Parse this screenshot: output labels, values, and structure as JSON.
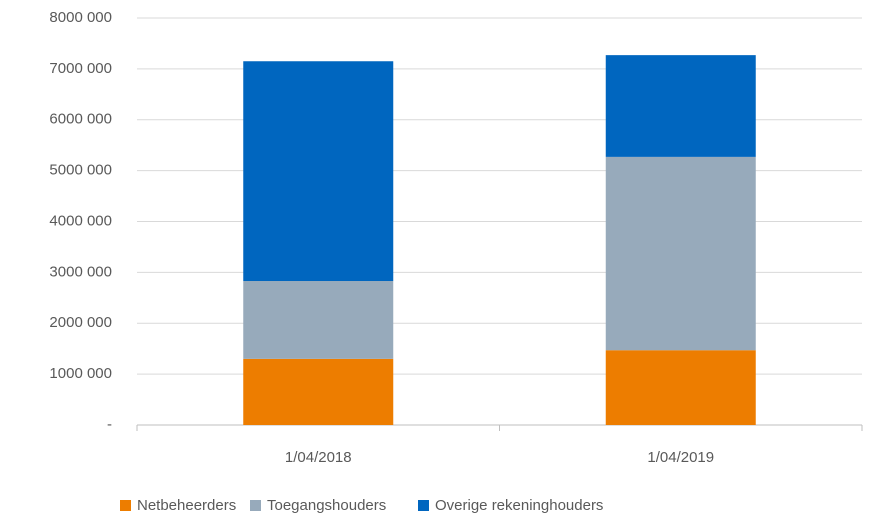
{
  "chart_data": {
    "type": "stacked_bar",
    "categories": [
      "1/04/2018",
      "1/04/2019"
    ],
    "series": [
      {
        "name": "Netbeheerders",
        "color": "#ed7d00",
        "values": [
          1300000,
          1470000
        ]
      },
      {
        "name": "Toegangshouders",
        "color": "#97aabb",
        "values": [
          1530000,
          3800000
        ]
      },
      {
        "name": "Overige rekeninghouders",
        "color": "#0066bf",
        "values": [
          4320000,
          2000000
        ]
      }
    ],
    "ylim": [
      0,
      8000000
    ],
    "yticks": [
      {
        "value": 0,
        "label": "-"
      },
      {
        "value": 1000000,
        "label": "1000 000"
      },
      {
        "value": 2000000,
        "label": "2000 000"
      },
      {
        "value": 3000000,
        "label": "3000 000"
      },
      {
        "value": 4000000,
        "label": "4000 000"
      },
      {
        "value": 5000000,
        "label": "5000 000"
      },
      {
        "value": 6000000,
        "label": "6000 000"
      },
      {
        "value": 7000000,
        "label": "7000 000"
      },
      {
        "value": 8000000,
        "label": "8000 000"
      }
    ],
    "grid": true
  }
}
